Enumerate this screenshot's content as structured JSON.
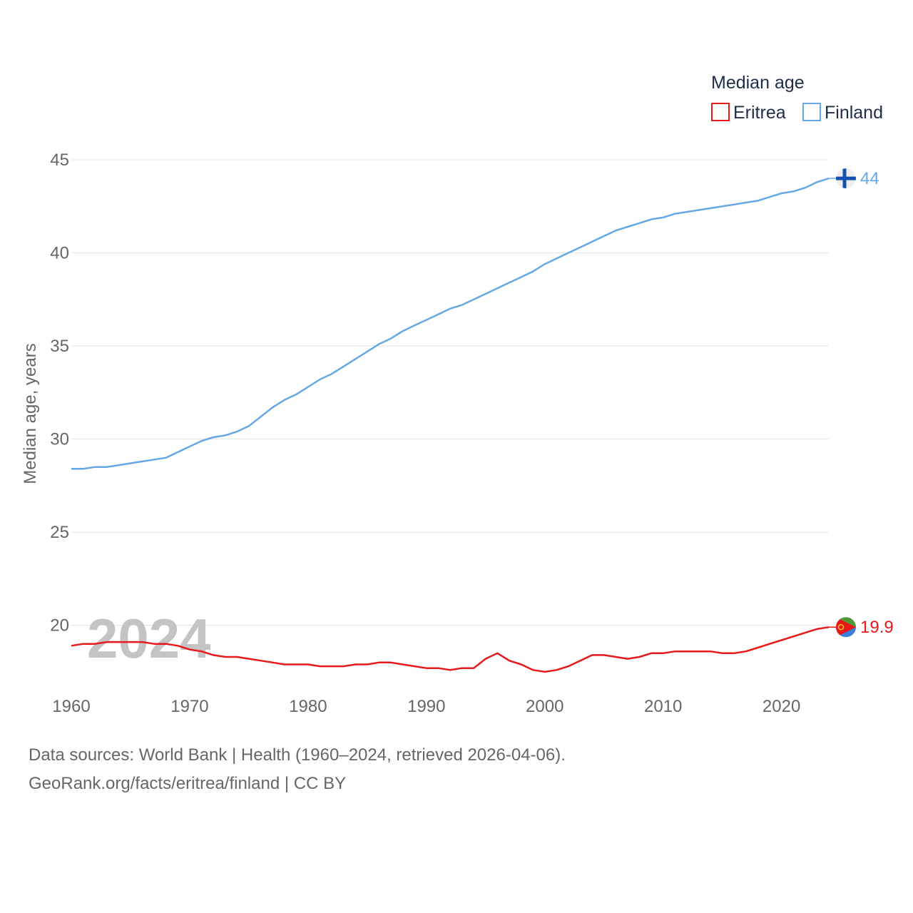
{
  "chart_data": {
    "type": "line",
    "title": "",
    "legend_title": "Median age",
    "ylabel": "Median age, years",
    "xlabel": "",
    "xlim": [
      1960,
      2024
    ],
    "ylim": [
      16.5,
      45
    ],
    "x_ticks": [
      1960,
      1970,
      1980,
      1990,
      2000,
      2010,
      2020
    ],
    "y_ticks": [
      20,
      25,
      30,
      35,
      40,
      45
    ],
    "grid": true,
    "legend_position": "top-right",
    "year_watermark": "2024",
    "series": [
      {
        "name": "Eritrea",
        "color": "#e8191a",
        "end_label": "19.9",
        "flag_icon": "eritrea-flag-icon",
        "x": [
          1960,
          1961,
          1962,
          1963,
          1964,
          1965,
          1966,
          1967,
          1968,
          1969,
          1970,
          1971,
          1972,
          1973,
          1974,
          1975,
          1976,
          1977,
          1978,
          1979,
          1980,
          1981,
          1982,
          1983,
          1984,
          1985,
          1986,
          1987,
          1988,
          1989,
          1990,
          1991,
          1992,
          1993,
          1994,
          1995,
          1996,
          1997,
          1998,
          1999,
          2000,
          2001,
          2002,
          2003,
          2004,
          2005,
          2006,
          2007,
          2008,
          2009,
          2010,
          2011,
          2012,
          2013,
          2014,
          2015,
          2016,
          2017,
          2018,
          2019,
          2020,
          2021,
          2022,
          2023,
          2024
        ],
        "values": [
          18.9,
          19.0,
          19.0,
          19.1,
          19.1,
          19.1,
          19.1,
          19.0,
          19.0,
          18.9,
          18.7,
          18.6,
          18.4,
          18.3,
          18.3,
          18.2,
          18.1,
          18.0,
          17.9,
          17.9,
          17.9,
          17.8,
          17.8,
          17.8,
          17.9,
          17.9,
          18.0,
          18.0,
          17.9,
          17.8,
          17.7,
          17.7,
          17.6,
          17.7,
          17.7,
          18.2,
          18.5,
          18.1,
          17.9,
          17.6,
          17.5,
          17.6,
          17.8,
          18.1,
          18.4,
          18.4,
          18.3,
          18.2,
          18.3,
          18.5,
          18.5,
          18.6,
          18.6,
          18.6,
          18.6,
          18.5,
          18.5,
          18.6,
          18.8,
          19.0,
          19.2,
          19.4,
          19.6,
          19.8,
          19.9
        ]
      },
      {
        "name": "Finland",
        "color": "#66a8e3",
        "end_label": "44",
        "flag_icon": "finland-flag-icon",
        "x": [
          1960,
          1961,
          1962,
          1963,
          1964,
          1965,
          1966,
          1967,
          1968,
          1969,
          1970,
          1971,
          1972,
          1973,
          1974,
          1975,
          1976,
          1977,
          1978,
          1979,
          1980,
          1981,
          1982,
          1983,
          1984,
          1985,
          1986,
          1987,
          1988,
          1989,
          1990,
          1991,
          1992,
          1993,
          1994,
          1995,
          1996,
          1997,
          1998,
          1999,
          2000,
          2001,
          2002,
          2003,
          2004,
          2005,
          2006,
          2007,
          2008,
          2009,
          2010,
          2011,
          2012,
          2013,
          2014,
          2015,
          2016,
          2017,
          2018,
          2019,
          2020,
          2021,
          2022,
          2023,
          2024
        ],
        "values": [
          28.4,
          28.4,
          28.5,
          28.5,
          28.6,
          28.7,
          28.8,
          28.9,
          29.0,
          29.3,
          29.6,
          29.9,
          30.1,
          30.2,
          30.4,
          30.7,
          31.2,
          31.7,
          32.1,
          32.4,
          32.8,
          33.2,
          33.5,
          33.9,
          34.3,
          34.7,
          35.1,
          35.4,
          35.8,
          36.1,
          36.4,
          36.7,
          37.0,
          37.2,
          37.5,
          37.8,
          38.1,
          38.4,
          38.7,
          39.0,
          39.4,
          39.7,
          40.0,
          40.3,
          40.6,
          40.9,
          41.2,
          41.4,
          41.6,
          41.8,
          41.9,
          42.1,
          42.2,
          42.3,
          42.4,
          42.5,
          42.6,
          42.7,
          42.8,
          43.0,
          43.2,
          43.3,
          43.5,
          43.8,
          44.0
        ]
      }
    ]
  },
  "footer": {
    "sources": "Data sources: World Bank | Health (1960–2024, retrieved 2026-04-06).",
    "attribution": "GeoRank.org/facts/eritrea/finland | CC BY"
  }
}
